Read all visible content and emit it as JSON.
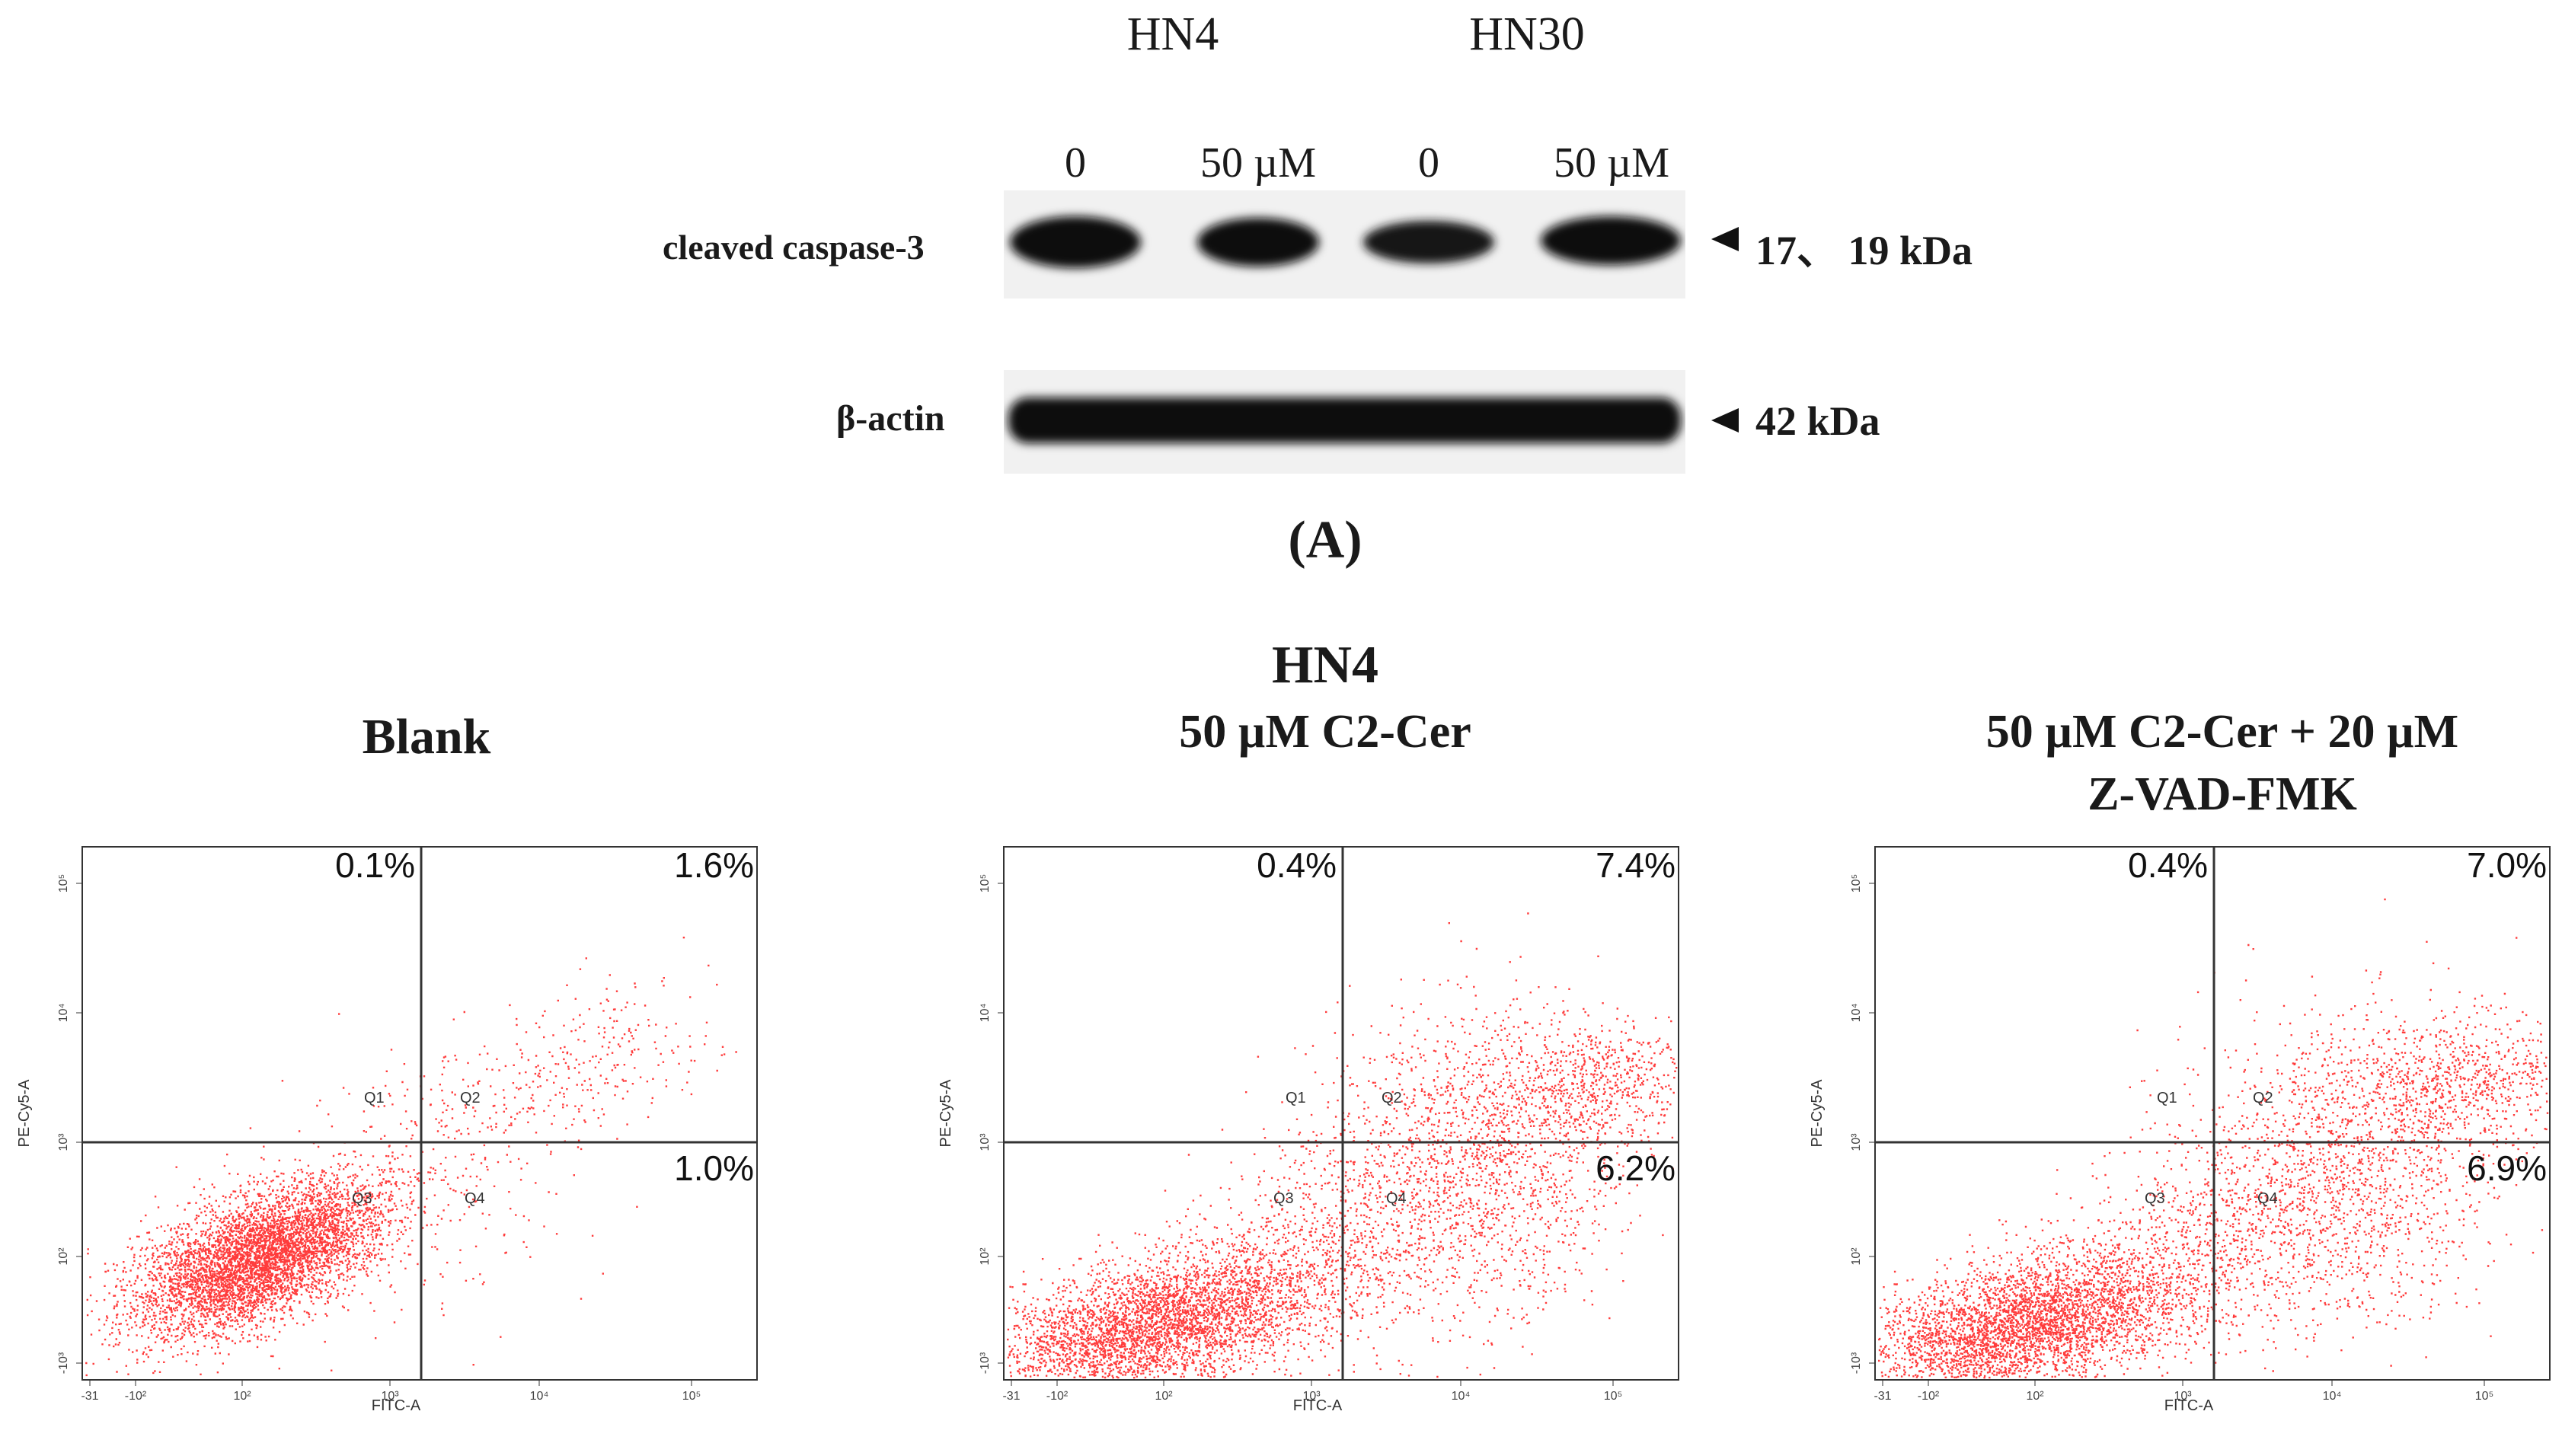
{
  "western_blot": {
    "cell_lines": [
      "HN4",
      "HN30"
    ],
    "lanes": [
      "0",
      "50 µM",
      "0",
      "50 µM"
    ],
    "rows": [
      {
        "protein": "cleaved caspase-3",
        "size": "17、 19 kDa"
      },
      {
        "protein": "β-actin",
        "size": "42 kDa"
      }
    ],
    "panel_label": "(A)"
  },
  "flow": {
    "cell_line": "HN4",
    "x_axis_label": "FITC-A",
    "y_axis_label": "PE-Cy5-A",
    "quadrant_names": [
      "Q1",
      "Q2",
      "Q3",
      "Q4"
    ],
    "x_ticks": [
      "-31",
      "-10²",
      "10²",
      "10³",
      "10⁴",
      "10⁵"
    ],
    "y_ticks": [
      "-10³",
      "10²",
      "10³",
      "10⁴",
      "10⁵"
    ],
    "panels": [
      {
        "title_lines": [
          "Blank"
        ],
        "q1": "0.1%",
        "q2": "1.6%",
        "q4": "1.0%"
      },
      {
        "title_lines": [
          "50 µM C2-Cer"
        ],
        "q1": "0.4%",
        "q2": "7.4%",
        "q4": "6.2%"
      },
      {
        "title_lines": [
          "50 µM C2-Cer + 20 µM",
          "Z-VAD-FMK"
        ],
        "q1": "0.4%",
        "q2": "7.0%",
        "q4": "6.9%"
      }
    ]
  },
  "colors": {
    "dots": "#ff1a1a",
    "band": "#101010",
    "line": "#333333"
  }
}
